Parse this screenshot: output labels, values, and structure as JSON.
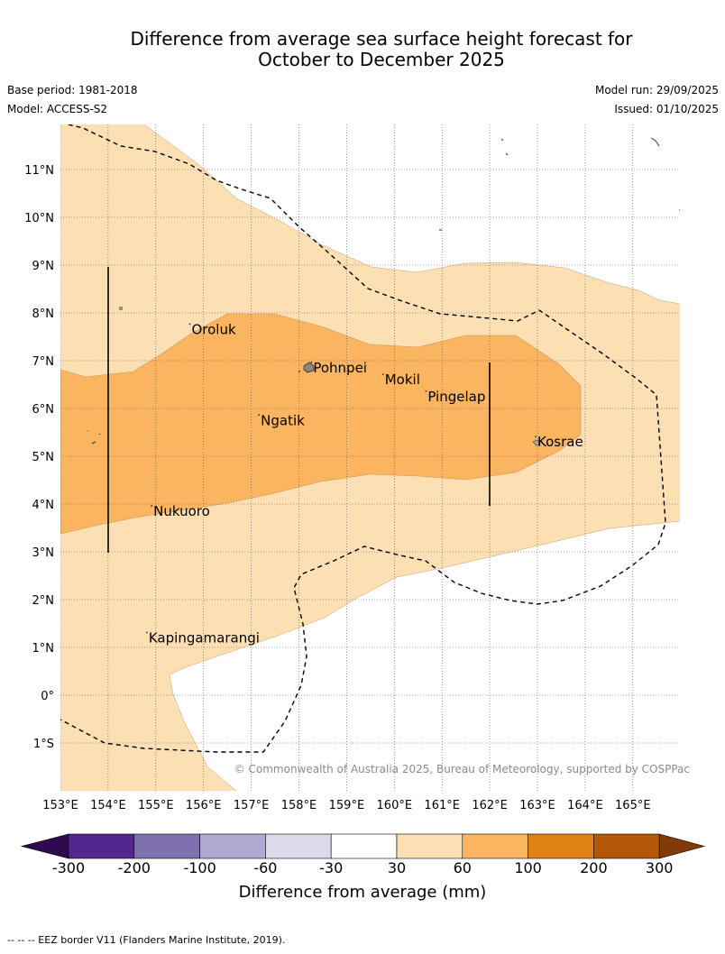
{
  "title_line1": "Difference from average sea surface height forecast for",
  "title_line2": "October to December 2025",
  "base_period": "Base period: 1981-2018",
  "model": "Model: ACCESS-S2",
  "model_run": "Model run: 29/09/2025",
  "issued": "Issued: 01/10/2025",
  "copyright": "© Commonwealth of Australia 2025, Bureau of Meteorology, supported by COSPPac",
  "footnote": "--  --  -- EEZ border V11 (Flanders Marine Institute, 2019).",
  "lon_ticks": [
    "153°E",
    "154°E",
    "155°E",
    "156°E",
    "157°E",
    "158°E",
    "159°E",
    "160°E",
    "161°E",
    "162°E",
    "163°E",
    "164°E",
    "165°E"
  ],
  "lat_ticks": [
    "11°N",
    "10°N",
    "9°N",
    "8°N",
    "7°N",
    "6°N",
    "5°N",
    "4°N",
    "3°N",
    "2°N",
    "1°N",
    "0°",
    "1°S"
  ],
  "places": [
    {
      "name": "Oroluk",
      "lon": 155.75,
      "lat": 7.65
    },
    {
      "name": "Pohnpei",
      "lon": 158.3,
      "lat": 6.85
    },
    {
      "name": "Mokil",
      "lon": 159.8,
      "lat": 6.6
    },
    {
      "name": "Pingelap",
      "lon": 160.7,
      "lat": 6.25
    },
    {
      "name": "Ngatik",
      "lon": 157.2,
      "lat": 5.75
    },
    {
      "name": "Kosrae",
      "lon": 163.0,
      "lat": 5.3
    },
    {
      "name": "Nukuoro",
      "lon": 154.95,
      "lat": 3.85
    },
    {
      "name": "Kapingamarangi",
      "lon": 154.85,
      "lat": 1.2
    }
  ],
  "colorbar": {
    "labels": [
      "-300",
      "-200",
      "-100",
      "-60",
      "-30",
      "30",
      "60",
      "100",
      "200",
      "300"
    ],
    "colors": [
      "#2d0b4e",
      "#54278f",
      "#7f71b0",
      "#afa9d1",
      "#dadaeb",
      "#ffffff",
      "#fddfb4",
      "#fbb460",
      "#e08214",
      "#b35806",
      "#7f3b08"
    ],
    "title": "Difference from average (mm)"
  },
  "map_colors": {
    "ocean_low": "#fddfb4",
    "ocean_mid": "#fbb460",
    "below": "#ffffff",
    "eez": "#000000",
    "grid": "#666666"
  }
}
